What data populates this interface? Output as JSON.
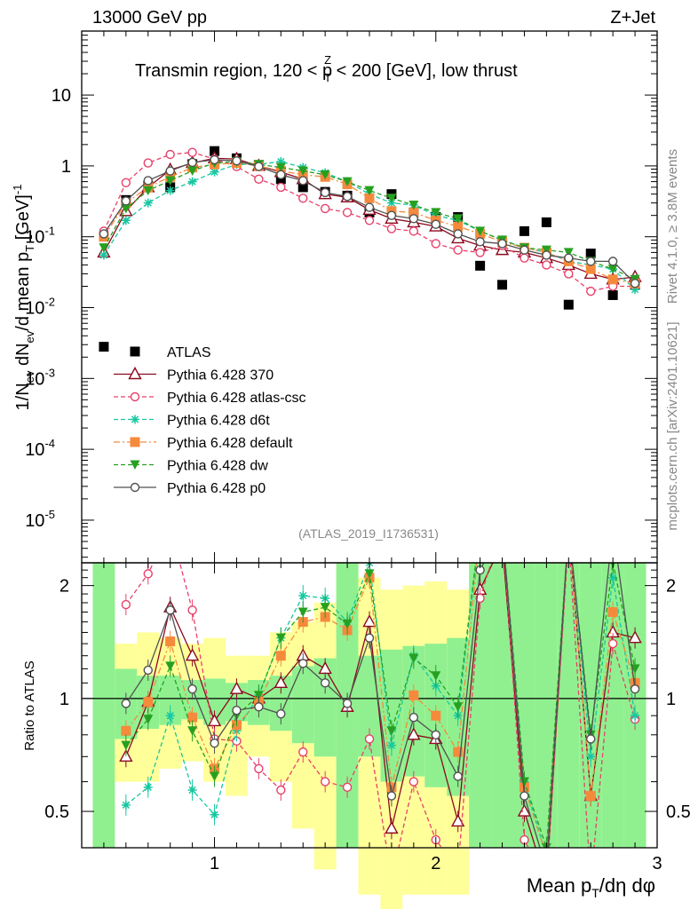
{
  "header": {
    "left": "13000 GeV pp",
    "right": "Z+Jet",
    "plot_title": "Transmin region, 120 < p",
    "plot_title_sup": "Z",
    "plot_title_sub": "T",
    "plot_title_rest": " < 200 [GeV], low thrust",
    "analysis_id": "(ATLAS_2019_I1736531)",
    "rivet_label": "Rivet 4.1.0, ≥ 3.8M events",
    "mcplots_label": "mcplots.cern.ch [arXiv:2401.10621]"
  },
  "axes": {
    "ylabel_main": "1/N_ev dN_ev/d mean p_T [GeV]^-1",
    "ylabel_ratio": "Ratio to ATLAS",
    "xlabel": "Mean p_T/dη dφ",
    "x_ticks": [
      "1",
      "2",
      "3"
    ],
    "y_ticks_main": [
      "10",
      "1",
      "10^-1",
      "10^-2",
      "10^-3",
      "10^-4",
      "10^-5"
    ],
    "y_ticks_ratio": [
      "2",
      "1",
      "0.5"
    ]
  },
  "colors": {
    "atlas": "#000000",
    "p370": "#8b0a1e",
    "atlas_csc": "#e8406a",
    "d6t": "#17c7a0",
    "default": "#f58a3c",
    "dw": "#26a020",
    "p0": "#505050",
    "band_inner": "#90f090",
    "band_outer": "#ffff99"
  },
  "chart_data": {
    "type": "scatter",
    "title": "Transmin region, 120 < pT^Z < 200 [GeV], low thrust",
    "xlabel": "Mean pT/dη dφ",
    "ylabel": "1/Nev dNev/d mean pT [GeV]^-1",
    "xlim": [
      0.4,
      3.0
    ],
    "ylim": [
      2.5e-06,
      80
    ],
    "ratio_ylim": [
      0.4,
      2.3
    ],
    "legend": "top-left",
    "x": [
      0.5,
      0.6,
      0.7,
      0.8,
      0.9,
      1.0,
      1.1,
      1.2,
      1.3,
      1.4,
      1.5,
      1.6,
      1.7,
      1.8,
      1.9,
      2.0,
      2.1,
      2.2,
      2.3,
      2.4,
      2.5,
      2.6,
      2.7,
      2.8,
      2.9
    ],
    "series": [
      {
        "name": "ATLAS",
        "key": "atlas",
        "marker": "square",
        "style": "none",
        "values": [
          0.0028,
          0.33,
          0.52,
          0.5,
          1.06,
          1.62,
          1.28,
          1.03,
          0.65,
          0.5,
          0.43,
          0.38,
          0.22,
          0.4,
          0.22,
          0.19,
          0.19,
          0.039,
          0.021,
          0.12,
          0.16,
          0.011,
          0.058,
          0.015,
          0.021
        ]
      },
      {
        "name": "Pythia 6.428 370",
        "key": "p370",
        "marker": "triangle-open",
        "style": "solid",
        "values": [
          0.06,
          0.23,
          0.5,
          0.88,
          1.1,
          1.28,
          1.25,
          1.0,
          0.82,
          0.65,
          0.4,
          0.36,
          0.24,
          0.18,
          0.16,
          0.14,
          0.095,
          0.075,
          0.065,
          0.06,
          0.05,
          0.04,
          0.03,
          0.025,
          0.027
        ]
      },
      {
        "name": "Pythia 6.428 atlas-csc",
        "key": "atlas_csc",
        "marker": "circle-open",
        "style": "dashed",
        "values": [
          0.12,
          0.58,
          1.1,
          1.45,
          1.55,
          1.25,
          0.98,
          0.65,
          0.5,
          0.35,
          0.25,
          0.22,
          0.17,
          0.13,
          0.12,
          0.08,
          0.065,
          0.06,
          0.075,
          0.05,
          0.04,
          0.03,
          0.017,
          0.02,
          0.02
        ]
      },
      {
        "name": "Pythia 6.428 d6t",
        "key": "d6t",
        "marker": "star",
        "style": "dashed",
        "values": [
          0.055,
          0.17,
          0.3,
          0.45,
          0.6,
          0.82,
          1.05,
          1.05,
          1.15,
          0.95,
          0.8,
          0.6,
          0.4,
          0.3,
          0.28,
          0.2,
          0.17,
          0.12,
          0.09,
          0.07,
          0.06,
          0.045,
          0.04,
          0.035,
          0.018
        ]
      },
      {
        "name": "Pythia 6.428 default",
        "key": "default",
        "marker": "square",
        "style": "dashdot",
        "values": [
          0.1,
          0.3,
          0.5,
          0.7,
          0.95,
          1.05,
          1.1,
          1.0,
          0.85,
          0.75,
          0.7,
          0.55,
          0.35,
          0.23,
          0.22,
          0.17,
          0.14,
          0.11,
          0.085,
          0.07,
          0.06,
          0.045,
          0.035,
          0.025,
          0.022
        ]
      },
      {
        "name": "Pythia 6.428 dw",
        "key": "dw",
        "marker": "triangle-down",
        "style": "dashed",
        "values": [
          0.07,
          0.25,
          0.45,
          0.62,
          0.85,
          1.1,
          1.15,
          1.05,
          0.95,
          0.85,
          0.75,
          0.6,
          0.45,
          0.35,
          0.28,
          0.22,
          0.18,
          0.12,
          0.09,
          0.07,
          0.065,
          0.06,
          0.045,
          0.035,
          0.025
        ]
      },
      {
        "name": "Pythia 6.428 p0",
        "key": "p0",
        "marker": "circle-open",
        "style": "solid",
        "values": [
          0.11,
          0.32,
          0.62,
          0.85,
          1.12,
          1.22,
          1.18,
          0.98,
          0.75,
          0.62,
          0.42,
          0.37,
          0.26,
          0.2,
          0.18,
          0.15,
          0.11,
          0.085,
          0.08,
          0.065,
          0.055,
          0.05,
          0.045,
          0.045,
          0.022
        ]
      }
    ],
    "ratio_series": [
      {
        "key": "p370",
        "values": [
          null,
          0.7,
          0.98,
          1.75,
          1.3,
          0.87,
          1.06,
          1.0,
          1.1,
          1.3,
          1.2,
          0.95,
          1.6,
          0.45,
          0.8,
          0.78,
          0.47,
          1.95,
          2.6,
          0.5,
          0.3,
          3.5,
          0.55,
          1.5,
          1.45
        ]
      },
      {
        "key": "atlas_csc",
        "values": [
          null,
          1.78,
          2.15,
          2.9,
          1.72,
          0.78,
          0.77,
          0.65,
          0.57,
          0.72,
          0.6,
          0.58,
          0.78,
          0.33,
          0.6,
          0.42,
          0.35,
          1.85,
          3.5,
          0.42,
          0.25,
          2.7,
          0.3,
          1.4,
          0.88
        ]
      },
      {
        "key": "d6t",
        "values": [
          null,
          0.52,
          0.58,
          0.9,
          0.57,
          0.49,
          0.82,
          1.02,
          1.45,
          1.88,
          1.85,
          1.6,
          2.3,
          0.75,
          1.3,
          1.08,
          0.9,
          3.0,
          4.2,
          0.6,
          0.38,
          4.0,
          0.7,
          2.1,
          0.9
        ]
      },
      {
        "key": "default",
        "values": [
          null,
          0.82,
          0.98,
          1.42,
          0.89,
          0.65,
          0.85,
          0.98,
          1.3,
          1.6,
          1.65,
          1.52,
          2.1,
          0.58,
          1.02,
          0.9,
          0.72,
          2.8,
          4.0,
          0.58,
          0.38,
          4.1,
          0.55,
          1.7,
          1.1
        ]
      },
      {
        "key": "dw",
        "values": [
          null,
          0.75,
          0.88,
          1.22,
          0.82,
          0.62,
          0.9,
          1.02,
          1.45,
          1.7,
          1.75,
          1.58,
          2.15,
          0.82,
          1.28,
          1.15,
          0.95,
          3.1,
          4.3,
          0.6,
          0.4,
          5.5,
          0.8,
          2.3,
          1.2
        ]
      },
      {
        "key": "p0",
        "values": [
          null,
          0.97,
          1.19,
          1.72,
          1.06,
          0.76,
          0.93,
          0.95,
          0.91,
          1.24,
          1.1,
          0.97,
          1.45,
          0.55,
          0.89,
          0.8,
          0.62,
          2.2,
          3.8,
          0.55,
          0.35,
          4.5,
          0.78,
          2.9,
          1.06
        ]
      }
    ],
    "ratio_band": {
      "inner": [
        0.0,
        0.78,
        0.83,
        0.85,
        0.88,
        0.85,
        0.87,
        0.85,
        0.82,
        0.76,
        0.7,
        0.0,
        0.7,
        0.6,
        0.62,
        0.58,
        0.55,
        0.0,
        0.0,
        0.0,
        0.0,
        0.0,
        0.0,
        0.0,
        0.0
      ],
      "inner_hi": [
        5.0,
        1.2,
        1.15,
        1.15,
        1.12,
        1.13,
        1.1,
        1.12,
        1.15,
        1.22,
        1.28,
        5.0,
        1.3,
        1.35,
        1.38,
        1.4,
        1.45,
        5.0,
        5.0,
        5.0,
        5.0,
        5.0,
        5.0,
        5.0,
        5.0
      ],
      "outer": [
        0.0,
        0.6,
        0.6,
        0.65,
        0.68,
        0.6,
        0.55,
        0.7,
        0.6,
        0.45,
        0.35,
        0.0,
        0.3,
        0.25,
        0.3,
        0.3,
        0.3,
        0.0,
        0.0,
        0.0,
        0.0,
        0.0,
        0.0,
        0.0,
        0.0
      ],
      "outer_hi": [
        5.0,
        1.4,
        1.5,
        1.45,
        1.4,
        1.45,
        1.3,
        1.3,
        1.5,
        1.6,
        1.8,
        5.0,
        2.1,
        1.95,
        2.0,
        2.05,
        1.95,
        5.0,
        5.0,
        5.0,
        5.0,
        5.0,
        5.0,
        5.0,
        5.0
      ]
    }
  }
}
